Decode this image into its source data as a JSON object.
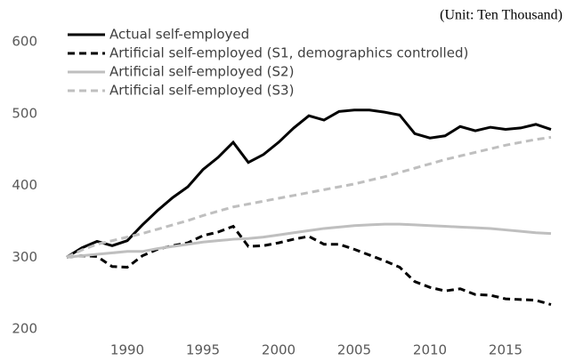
{
  "chart_data": {
    "type": "line",
    "annotation": "(Unit: Ten Thousand)",
    "x": [
      1986,
      1987,
      1988,
      1989,
      1990,
      1991,
      1992,
      1993,
      1994,
      1995,
      1996,
      1997,
      1998,
      1999,
      2000,
      2001,
      2002,
      2003,
      2004,
      2005,
      2006,
      2007,
      2008,
      2009,
      2010,
      2011,
      2012,
      2013,
      2014,
      2015,
      2016,
      2017,
      2018
    ],
    "series": [
      {
        "name": "Actual self-employed",
        "color": "#000000",
        "dash": false,
        "values": [
          300,
          313,
          322,
          316,
          323,
          345,
          365,
          383,
          398,
          422,
          439,
          460,
          432,
          443,
          460,
          480,
          497,
          491,
          503,
          505,
          505,
          502,
          498,
          472,
          466,
          469,
          482,
          476,
          481,
          478,
          480,
          485,
          478
        ]
      },
      {
        "name": "Artificial self-employed (S1, demographics controlled)",
        "color": "#000000",
        "dash": true,
        "values": [
          300,
          302,
          301,
          287,
          286,
          302,
          311,
          316,
          320,
          330,
          335,
          343,
          315,
          316,
          320,
          325,
          329,
          318,
          318,
          311,
          303,
          295,
          286,
          266,
          258,
          253,
          256,
          248,
          247,
          242,
          241,
          240,
          234
        ]
      },
      {
        "name": "Artificial self-employed (S2)",
        "color": "#bfbfbf",
        "dash": false,
        "values": [
          300,
          302,
          304,
          306,
          308,
          308,
          312,
          315,
          318,
          321,
          323,
          325,
          326,
          328,
          331,
          334,
          337,
          340,
          342,
          344,
          345,
          346,
          346,
          345,
          344,
          343,
          342,
          341,
          340,
          338,
          336,
          334,
          333
        ]
      },
      {
        "name": "Artificial self-employed (S3)",
        "color": "#bfbfbf",
        "dash": true,
        "values": [
          300,
          310,
          318,
          323,
          328,
          333,
          339,
          345,
          351,
          358,
          364,
          370,
          374,
          378,
          382,
          386,
          390,
          394,
          398,
          402,
          407,
          412,
          418,
          424,
          430,
          436,
          441,
          446,
          451,
          456,
          460,
          464,
          467
        ]
      }
    ],
    "xlim": [
      1986,
      2018
    ],
    "xticks": [
      1990,
      1995,
      2000,
      2005,
      2010,
      2015
    ],
    "ylim": [
      200,
      600
    ],
    "yticks": [
      200,
      300,
      400,
      500,
      600
    ],
    "grid": false,
    "legend": "top-left"
  }
}
